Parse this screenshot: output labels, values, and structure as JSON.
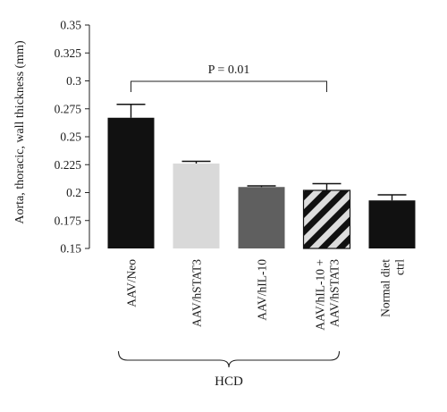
{
  "chart_data": {
    "type": "bar",
    "ylabel": "Aorta, thoracic, wall thickness (mm)",
    "ylim": [
      0.15,
      0.35
    ],
    "yticks": [
      0.15,
      0.175,
      0.2,
      0.225,
      0.25,
      0.275,
      0.3,
      0.325,
      0.35
    ],
    "ytick_labels": [
      "0.15",
      "0.175",
      "0.2",
      "0.225",
      "0.25",
      "0.275",
      "0.3",
      "0.325",
      "0.35"
    ],
    "categories": [
      [
        "AAV/Neo"
      ],
      [
        "AAV/hSTAT3"
      ],
      [
        "AAV/hIL-10"
      ],
      [
        "AAV/hIL-10 +",
        "AAV/hSTAT3"
      ],
      [
        "Normal diet",
        "ctrl"
      ]
    ],
    "values": [
      0.267,
      0.226,
      0.205,
      0.202,
      0.193
    ],
    "errors": [
      0.012,
      0.002,
      0.001,
      0.006,
      0.005
    ],
    "bar_colors": [
      "#111111",
      "#d9d9d9",
      "#5f5f5f",
      "#dddddd",
      "#111111"
    ],
    "bar_patterns": [
      "solid",
      "solid",
      "solid",
      "hatch",
      "solid"
    ],
    "hatch_color": "#111111",
    "annotation": {
      "label": "P = 0.01",
      "from_category": 0,
      "to_category": 3
    },
    "group_bracket": {
      "label": "HCD",
      "from_category": 0,
      "to_category": 3
    },
    "grid": false,
    "legend": "none"
  }
}
